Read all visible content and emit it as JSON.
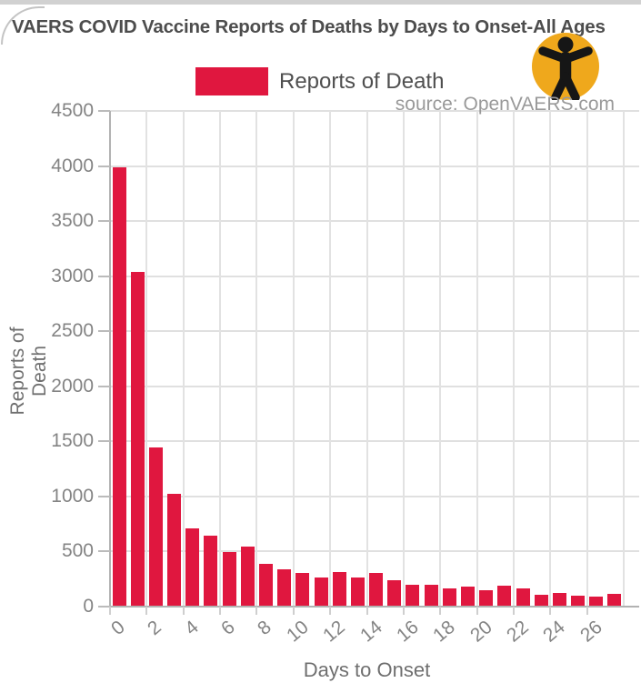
{
  "header": {
    "title": "VAERS COVID Vaccine Reports of Deaths by Days to Onset-All Ages",
    "source_credit": "source: OpenVAERS.com"
  },
  "legend": {
    "label": "Reports of Death"
  },
  "logo": {
    "icon": "openvaers-person-icon",
    "bg_color": "#efa81c",
    "figure_color": "#161616"
  },
  "colors": {
    "bar": "#e0173f",
    "grid": "#e0e0e0",
    "axis": "#b2b2b2",
    "tick_text": "#848484",
    "title_text": "#4d4d4d"
  },
  "chart_data": {
    "type": "bar",
    "title": "VAERS COVID Vaccine Reports of Deaths by Days to Onset-All Ages",
    "xlabel": "Days to Onset",
    "ylabel": "Reports of Death",
    "series_label": "Reports of Death",
    "legend_position": "top-center",
    "grid": true,
    "ylim": [
      0,
      4500
    ],
    "ytick_step": 500,
    "ytick_labels": [
      "4500",
      "4000",
      "3500",
      "3000",
      "2500",
      "2000",
      "1500",
      "1000",
      "500",
      "0"
    ],
    "xtick_labels": [
      "0",
      "2",
      "4",
      "6",
      "8",
      "10",
      "12",
      "14",
      "16",
      "18",
      "20",
      "22",
      "24",
      "26"
    ],
    "categories": [
      0,
      1,
      2,
      3,
      4,
      5,
      6,
      7,
      8,
      9,
      10,
      11,
      12,
      13,
      14,
      15,
      16,
      17,
      18,
      19,
      20,
      21,
      22,
      23,
      24,
      25,
      26,
      27
    ],
    "values": [
      4000,
      3050,
      1450,
      1030,
      715,
      650,
      500,
      555,
      400,
      345,
      315,
      270,
      325,
      270,
      310,
      250,
      210,
      210,
      170,
      190,
      155,
      200,
      170,
      115,
      130,
      105,
      100,
      120
    ]
  }
}
